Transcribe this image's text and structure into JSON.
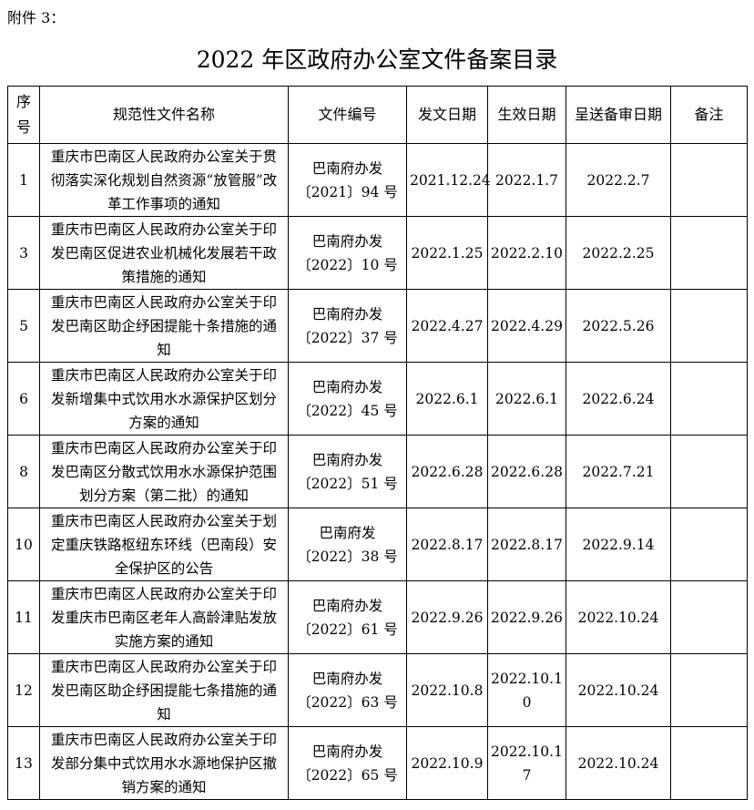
{
  "attachment_label": "附件 3：",
  "title": "2022 年区政府办公室文件备案目录",
  "headers": [
    "序号",
    "规范性文件名称",
    "文件编号",
    "发文日期",
    "生效日期",
    "呈送备审日期",
    "备注"
  ],
  "rows": [
    {
      "no": "1",
      "name": "重庆市巴南区人民政府办公室关于贯彻落实深化规划自然资源“放管服”改革工作事项的通知",
      "code1": "巴南府办发",
      "code2": "〔2021〕94 号",
      "issued": "2021.12.24",
      "effective": "2022.1.7",
      "submitted": "2022.2.7",
      "note": ""
    },
    {
      "no": "3",
      "name": "重庆市巴南区人民政府办公室关于印发巴南区促进农业机械化发展若干政策措施的通知",
      "code1": "巴南府办发",
      "code2": "〔2022〕10 号",
      "issued": "2022.1.25",
      "effective": "2022.2.10",
      "submitted": "2022.2.25",
      "note": ""
    },
    {
      "no": "5",
      "name": "重庆市巴南区人民政府办公室关于印发巴南区助企纾困提能十条措施的通知",
      "code1": "巴南府办发",
      "code2": "〔2022〕37 号",
      "issued": "2022.4.27",
      "effective": "2022.4.29",
      "submitted": "2022.5.26",
      "note": ""
    },
    {
      "no": "6",
      "name": "重庆市巴南区人民政府办公室关于印发新增集中式饮用水水源保护区划分方案的通知",
      "code1": "巴南府办发",
      "code2": "〔2022〕45 号",
      "issued": "2022.6.1",
      "effective": "2022.6.1",
      "submitted": "2022.6.24",
      "note": ""
    },
    {
      "no": "8",
      "name": "重庆市巴南区人民政府办公室关于印发巴南区分散式饮用水水源保护范围划分方案（第二批）的通知",
      "code1": "巴南府办发",
      "code2": "〔2022〕51 号",
      "issued": "2022.6.28",
      "effective": "2022.6.28",
      "submitted": "2022.7.21",
      "note": ""
    },
    {
      "no": "10",
      "name": "重庆市巴南区人民政府办公室关于划定重庆铁路枢纽东环线（巴南段）安全保护区的公告",
      "code1": "巴南府发",
      "code2": "〔2022〕38 号",
      "issued": "2022.8.17",
      "effective": "2022.8.17",
      "submitted": "2022.9.14",
      "note": ""
    },
    {
      "no": "11",
      "name": "重庆市巴南区人民政府办公室关于印发重庆市巴南区老年人高龄津贴发放实施方案的通知",
      "code1": "巴南府办发",
      "code2": "〔2022〕61 号",
      "issued": "2022.9.26",
      "effective": "2022.9.26",
      "submitted": "2022.10.24",
      "note": ""
    },
    {
      "no": "12",
      "name": "重庆市巴南区人民政府办公室关于印发巴南区助企纾困提能七条措施的通知",
      "code1": "巴南府办发",
      "code2": "〔2022〕63 号",
      "issued": "2022.10.8",
      "effective": "2022.10.10",
      "submitted": "2022.10.24",
      "note": ""
    },
    {
      "no": "13",
      "name": "重庆市巴南区人民政府办公室关于印发部分集中式饮用水水源地保护区撤销方案的通知",
      "code1": "巴南府办发",
      "code2": "〔2022〕65 号",
      "issued": "2022.10.9",
      "effective": "2022.10.17",
      "submitted": "2022.10.24",
      "note": ""
    }
  ]
}
